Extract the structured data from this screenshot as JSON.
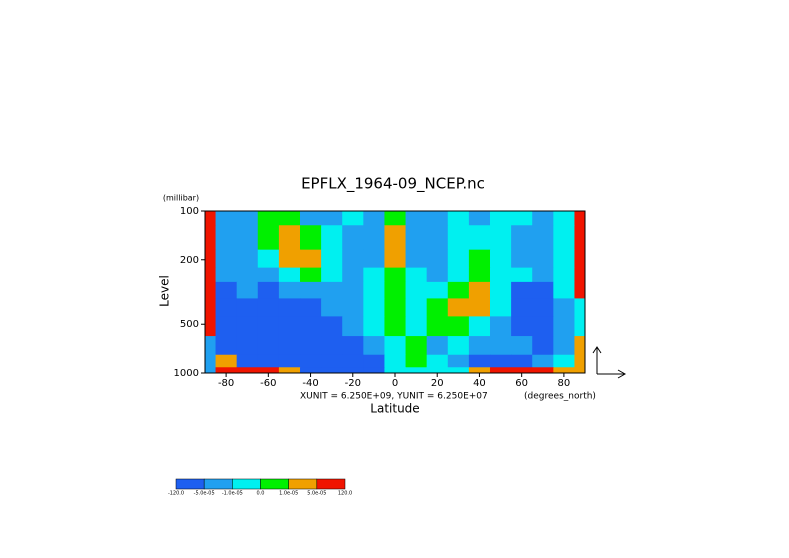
{
  "chart_data": {
    "type": "contour",
    "title": "EPFLX_1964-09_NCEP.nc",
    "x_label": "Latitude",
    "x_unit": "(degrees_north)",
    "y_label": "Level",
    "y_unit": "(millibar)",
    "vector_units": "XUNIT = 6.250E+09, YUNIT = 6.250E+07",
    "x": [
      -90,
      -80,
      -70,
      -60,
      -50,
      -40,
      -30,
      -20,
      -10,
      0,
      10,
      20,
      30,
      40,
      50,
      60,
      70,
      80,
      90
    ],
    "levels": [
      100,
      150,
      200,
      250,
      300,
      400,
      500,
      700,
      850,
      1000
    ],
    "z": [
      [
        0.0001,
        -3e-05,
        -3e-05,
        5e-06,
        5e-06,
        -3e-05,
        -3e-05,
        -5e-06,
        -3e-05,
        5e-06,
        -3e-05,
        -3e-05,
        -5e-06,
        -3e-05,
        -5e-06,
        -5e-06,
        -3e-05,
        -5e-06,
        0.0001
      ],
      [
        0.0001,
        -3e-05,
        -3e-05,
        5e-06,
        3e-05,
        5e-06,
        -5e-06,
        -3e-05,
        -3e-05,
        3e-05,
        -3e-05,
        -3e-05,
        -5e-06,
        -5e-06,
        -5e-06,
        -3e-05,
        -3e-05,
        -5e-06,
        0.0001
      ],
      [
        0.0001,
        -3e-05,
        -3e-05,
        -5e-06,
        3e-05,
        3e-05,
        -5e-06,
        -3e-05,
        -3e-05,
        3e-05,
        -3e-05,
        -3e-05,
        -5e-06,
        5e-06,
        -5e-06,
        -3e-05,
        -3e-05,
        -5e-06,
        0.0001
      ],
      [
        0.0001,
        -3e-05,
        -3e-05,
        -3e-05,
        -5e-06,
        5e-06,
        -5e-06,
        -3e-05,
        -5e-06,
        5e-06,
        -5e-06,
        -3e-05,
        -5e-06,
        5e-06,
        -5e-06,
        -5e-06,
        -3e-05,
        -5e-06,
        0.0001
      ],
      [
        0.0001,
        -6e-05,
        -3e-05,
        -6e-05,
        -3e-05,
        -3e-05,
        -3e-05,
        -3e-05,
        -5e-06,
        5e-06,
        -5e-06,
        -5e-06,
        5e-06,
        3e-05,
        -5e-06,
        -6e-05,
        -6e-05,
        -5e-06,
        0.0001
      ],
      [
        0.0001,
        -6e-05,
        -6e-05,
        -6e-05,
        -6e-05,
        -6e-05,
        -3e-05,
        -3e-05,
        -5e-06,
        5e-06,
        -5e-06,
        5e-06,
        3e-05,
        3e-05,
        -5e-06,
        -6e-05,
        -6e-05,
        -3e-05,
        -5e-06
      ],
      [
        0.0001,
        -6e-05,
        -6e-05,
        -6e-05,
        -6e-05,
        -6e-05,
        -6e-05,
        -3e-05,
        -5e-06,
        5e-06,
        -5e-06,
        5e-06,
        5e-06,
        -5e-06,
        -3e-05,
        -6e-05,
        -6e-05,
        -3e-05,
        -5e-06
      ],
      [
        -3e-05,
        -6e-05,
        -6e-05,
        -6e-05,
        -6e-05,
        -6e-05,
        -6e-05,
        -6e-05,
        -3e-05,
        -5e-06,
        5e-06,
        -3e-05,
        -5e-06,
        -3e-05,
        -3e-05,
        -3e-05,
        -6e-05,
        -3e-05,
        3e-05
      ],
      [
        -3e-05,
        3e-05,
        -6e-05,
        -6e-05,
        -6e-05,
        -6e-05,
        -6e-05,
        -6e-05,
        -6e-05,
        -5e-06,
        5e-06,
        -5e-06,
        -3e-05,
        -6e-05,
        -6e-05,
        -6e-05,
        -3e-05,
        -5e-06,
        3e-05
      ],
      [
        -3e-05,
        0.0001,
        0.0001,
        0.0001,
        3e-05,
        -6e-05,
        -6e-05,
        -6e-05,
        -6e-05,
        -5e-06,
        -5e-06,
        -5e-06,
        -5e-06,
        3e-05,
        0.0001,
        0.0001,
        0.0001,
        3e-05,
        3e-05
      ]
    ],
    "xlim": [
      -90,
      90
    ],
    "xticks": [
      -80,
      -60,
      -40,
      -20,
      0,
      20,
      40,
      60,
      80
    ],
    "ylim": [
      100,
      1000
    ],
    "yticks": [
      100,
      200,
      500,
      1000
    ],
    "y_log": true,
    "y_inverted": true,
    "colorbar": {
      "bounds": [
        {
          "value": -120,
          "label": "-120.0"
        },
        {
          "value": -5e-05,
          "label": "-5.0e-05"
        },
        {
          "value": -1e-05,
          "label": "-1.0e-05"
        },
        {
          "value": 0,
          "label": "0.0"
        },
        {
          "value": 1e-05,
          "label": "1.0e-05"
        },
        {
          "value": 5e-05,
          "label": "5.0e-05"
        },
        {
          "value": 120,
          "label": "120.0"
        }
      ],
      "colors": [
        "#1e5ff0",
        "#20a0f0",
        "#00f0f0",
        "#00f000",
        "#f0a000",
        "#f01400"
      ]
    }
  }
}
